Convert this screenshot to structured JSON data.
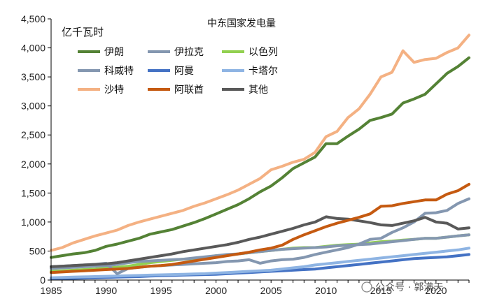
{
  "chart_data": {
    "type": "line",
    "title": "中东国家发电量",
    "ylabel": "亿千瓦时",
    "xlabel": "",
    "xlim": [
      1985,
      2023
    ],
    "ylim": [
      0,
      4500
    ],
    "yticks": [
      0,
      500,
      1000,
      1500,
      2000,
      2500,
      3000,
      3500,
      4000,
      4500
    ],
    "ytick_labels": [
      "0",
      "500",
      "1,000",
      "1,500",
      "2,000",
      "2,500",
      "3,000",
      "3,500",
      "4,000",
      "4,500"
    ],
    "xticks": [
      1985,
      1990,
      1995,
      2000,
      2005,
      2010,
      2015,
      2020
    ],
    "xtick_labels": [
      "1985",
      "1990",
      "1995",
      "2000",
      "2005",
      "2010",
      "2015",
      "2020"
    ],
    "legend_position": "top-left",
    "x": [
      1985,
      1986,
      1987,
      1988,
      1989,
      1990,
      1991,
      1992,
      1993,
      1994,
      1995,
      1996,
      1997,
      1998,
      1999,
      2000,
      2001,
      2002,
      2003,
      2004,
      2005,
      2006,
      2007,
      2008,
      2009,
      2010,
      2011,
      2012,
      2013,
      2014,
      2015,
      2016,
      2017,
      2018,
      2019,
      2020,
      2021,
      2022,
      2023
    ],
    "series": [
      {
        "name": "伊朗",
        "color": "#548235",
        "values": [
          390,
          420,
          450,
          470,
          510,
          580,
          620,
          670,
          720,
          790,
          830,
          870,
          930,
          990,
          1060,
          1140,
          1220,
          1300,
          1400,
          1520,
          1620,
          1760,
          1920,
          2020,
          2120,
          2350,
          2350,
          2480,
          2600,
          2750,
          2800,
          2860,
          3050,
          3120,
          3200,
          3380,
          3560,
          3680,
          3830
        ]
      },
      {
        "name": "伊拉克",
        "color": "#8497b0",
        "values": [
          230,
          240,
          250,
          260,
          270,
          290,
          110,
          200,
          220,
          240,
          250,
          260,
          270,
          280,
          290,
          300,
          320,
          330,
          350,
          290,
          330,
          350,
          360,
          390,
          440,
          480,
          520,
          560,
          620,
          700,
          720,
          820,
          900,
          1000,
          1150,
          1160,
          1200,
          1320,
          1400
        ]
      },
      {
        "name": "以色列",
        "color": "#92d050",
        "values": [
          150,
          160,
          170,
          180,
          190,
          210,
          220,
          240,
          270,
          300,
          320,
          340,
          360,
          370,
          390,
          420,
          430,
          450,
          470,
          490,
          510,
          530,
          550,
          560,
          560,
          580,
          600,
          610,
          620,
          640,
          660,
          670,
          690,
          700,
          720,
          720,
          740,
          760,
          780
        ]
      },
      {
        "name": "科威特",
        "color": "#8497b0",
        "values": [
          200,
          210,
          220,
          230,
          240,
          250,
          270,
          300,
          320,
          330,
          340,
          350,
          360,
          380,
          400,
          420,
          440,
          450,
          470,
          490,
          510,
          530,
          540,
          550,
          560,
          570,
          590,
          600,
          610,
          620,
          640,
          660,
          680,
          700,
          720,
          720,
          740,
          760,
          780
        ]
      },
      {
        "name": "阿曼",
        "color": "#4472c4",
        "values": [
          20,
          25,
          30,
          35,
          40,
          45,
          50,
          55,
          60,
          70,
          75,
          80,
          85,
          90,
          95,
          100,
          110,
          120,
          130,
          140,
          150,
          160,
          170,
          180,
          190,
          210,
          230,
          250,
          270,
          290,
          310,
          330,
          350,
          370,
          380,
          390,
          400,
          420,
          440
        ]
      },
      {
        "name": "卡塔尔",
        "color": "#8eb4e3",
        "values": [
          40,
          45,
          50,
          55,
          60,
          65,
          70,
          75,
          80,
          85,
          90,
          95,
          100,
          105,
          110,
          120,
          130,
          140,
          150,
          160,
          170,
          190,
          210,
          230,
          260,
          280,
          300,
          320,
          340,
          360,
          380,
          400,
          420,
          440,
          460,
          480,
          500,
          520,
          550
        ]
      },
      {
        "name": "沙特",
        "color": "#f4b183",
        "values": [
          510,
          560,
          640,
          700,
          760,
          810,
          860,
          940,
          1000,
          1050,
          1100,
          1150,
          1200,
          1270,
          1330,
          1400,
          1470,
          1550,
          1650,
          1750,
          1900,
          1960,
          2030,
          2080,
          2200,
          2470,
          2560,
          2800,
          2950,
          3200,
          3500,
          3580,
          3950,
          3750,
          3800,
          3820,
          3920,
          4000,
          4220
        ]
      },
      {
        "name": "阿联酋",
        "color": "#c55a11",
        "values": [
          130,
          140,
          150,
          160,
          170,
          180,
          190,
          200,
          220,
          240,
          250,
          270,
          300,
          330,
          360,
          390,
          420,
          450,
          480,
          520,
          550,
          600,
          700,
          780,
          850,
          920,
          980,
          1030,
          1080,
          1140,
          1270,
          1280,
          1320,
          1350,
          1380,
          1380,
          1480,
          1540,
          1650
        ]
      },
      {
        "name": "其他",
        "color": "#595959",
        "values": [
          230,
          240,
          250,
          260,
          270,
          280,
          300,
          330,
          360,
          390,
          420,
          450,
          490,
          520,
          550,
          580,
          610,
          650,
          700,
          740,
          790,
          840,
          890,
          950,
          1000,
          1090,
          1060,
          1050,
          1020,
          990,
          950,
          940,
          980,
          1020,
          1080,
          1000,
          980,
          880,
          900
        ]
      }
    ]
  },
  "watermark": "公众号 · 郭满天"
}
